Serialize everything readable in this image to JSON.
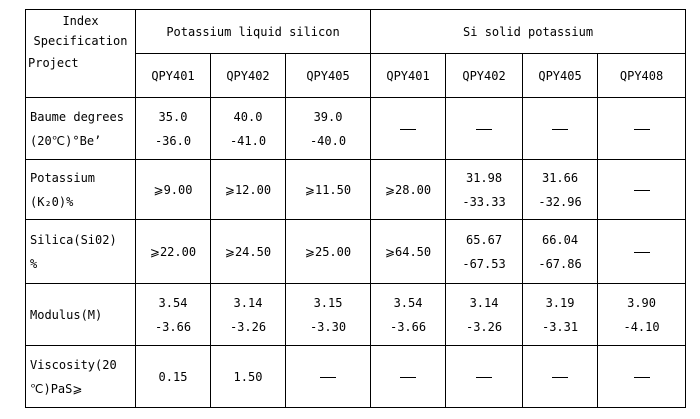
{
  "header": {
    "index": "Index",
    "specification": "Specification",
    "project": "Project",
    "group_liquid": "Potassium liquid silicon",
    "group_solid": "Si solid potassium",
    "models": [
      "QPY401",
      "QPY402",
      "QPY405",
      "QPY401",
      "QPY402",
      "QPY405",
      "QPY408"
    ]
  },
  "rows": [
    {
      "label_1": "Baume degrees",
      "label_2": "(20℃)°Be’",
      "cells": [
        [
          "35.0",
          "-36.0"
        ],
        [
          "40.0",
          "-41.0"
        ],
        [
          "39.0",
          "-40.0"
        ],
        null,
        null,
        null,
        null
      ]
    },
    {
      "label_1": "Potassium",
      "label_2": "(K₂0)%",
      "cells": [
        [
          "⩾9.00"
        ],
        [
          "⩾12.00"
        ],
        [
          "⩾11.50"
        ],
        [
          "⩾28.00"
        ],
        [
          "31.98",
          "-33.33"
        ],
        [
          "31.66",
          "-32.96"
        ],
        null
      ]
    },
    {
      "label_1": "Silica(Si02)",
      "label_2": "%",
      "cells": [
        [
          "⩾22.00"
        ],
        [
          "⩾24.50"
        ],
        [
          "⩾25.00"
        ],
        [
          "⩾64.50"
        ],
        [
          "65.67",
          "-67.53"
        ],
        [
          "66.04",
          "-67.86"
        ],
        null
      ]
    },
    {
      "label_1": "Modulus(M)",
      "label_2": "",
      "cells": [
        [
          "3.54",
          "-3.66"
        ],
        [
          "3.14",
          "-3.26"
        ],
        [
          "3.15",
          "-3.30"
        ],
        [
          "3.54",
          "-3.66"
        ],
        [
          "3.14",
          "-3.26"
        ],
        [
          "3.19",
          "-3.31"
        ],
        [
          "3.90",
          "-4.10"
        ]
      ]
    },
    {
      "label_1": "Viscosity(20",
      "label_2": "℃)PaS⩾",
      "cells": [
        [
          "0.15"
        ],
        [
          "1.50"
        ],
        null,
        null,
        null,
        null,
        null
      ]
    }
  ]
}
